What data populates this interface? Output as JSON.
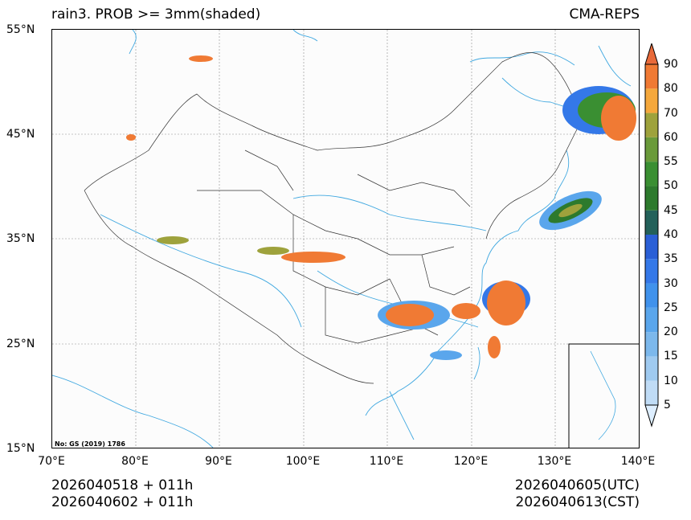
{
  "title_left": "rain3. PROB >= 3mm(shaded)",
  "title_right": "CMA-REPS",
  "lat_ticks": [
    "55°N",
    "45°N",
    "35°N",
    "25°N",
    "15°N"
  ],
  "lon_ticks": [
    "70°E",
    "80°E",
    "90°E",
    "100°E",
    "110°E",
    "120°E",
    "130°E",
    "140°E"
  ],
  "map_note": "No: GS (2019) 1786",
  "footer": {
    "init_utc": "2026040518  +  011h",
    "init_cst": "2026040602  +  011h",
    "valid_utc": "2026040605(UTC)",
    "valid_cst": "2026040613(CST)"
  },
  "colorbar": {
    "labels": [
      "5",
      "10",
      "15",
      "20",
      "25",
      "30",
      "35",
      "40",
      "45",
      "50",
      "55",
      "60",
      "70",
      "80",
      "90"
    ],
    "colors": [
      "#ddeeff",
      "#c0dcf6",
      "#9fcaf0",
      "#7cb8ec",
      "#5aa6ec",
      "#4092ec",
      "#3478e8",
      "#2a5fd6",
      "#23615a",
      "#2d7a2d",
      "#3a8f32",
      "#6a9a3a",
      "#9ea23c",
      "#f5a83c",
      "#f07a34",
      "#e86a3a"
    ]
  },
  "colors": {
    "land_border": "#333333",
    "coast": "#40a8e0",
    "grid": "#8c8c8c"
  }
}
